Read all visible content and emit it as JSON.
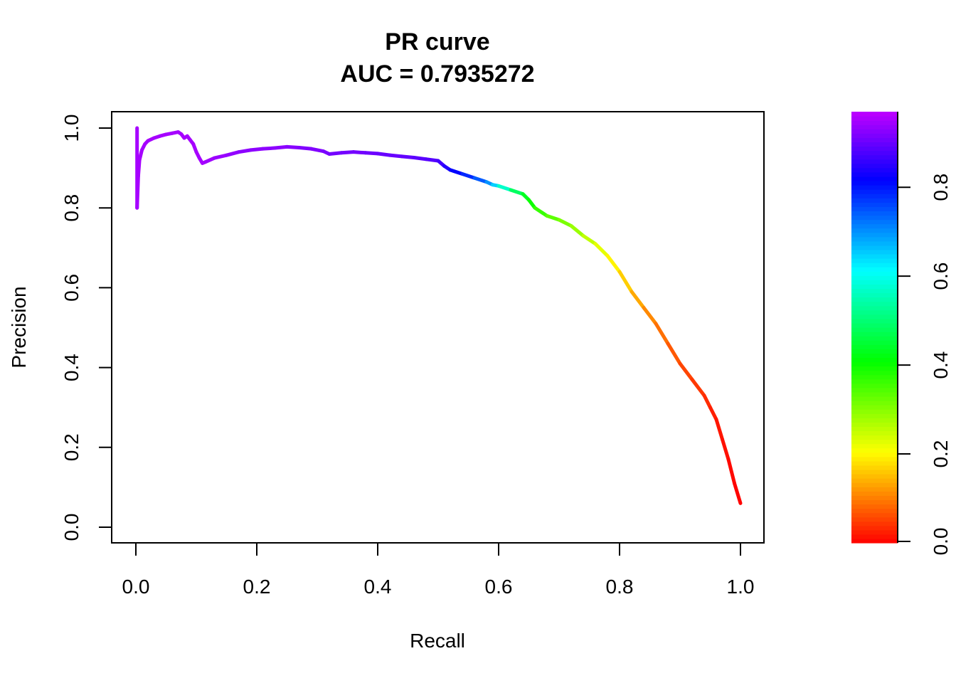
{
  "chart_data": {
    "type": "line",
    "title": "PR curve",
    "subtitle": "AUC = 0.7935272",
    "xlabel": "Recall",
    "ylabel": "Precision",
    "xlim": [
      0.0,
      1.0
    ],
    "ylim": [
      0.0,
      1.0
    ],
    "x_ticks": [
      "0.0",
      "0.2",
      "0.4",
      "0.6",
      "0.8",
      "1.0"
    ],
    "y_ticks": [
      "0.0",
      "0.2",
      "0.4",
      "0.6",
      "0.8",
      "1.0"
    ],
    "grid": false,
    "legend": "none",
    "colorbar": {
      "range": [
        0.0,
        0.97
      ],
      "ticks": [
        "0.0",
        "0.2",
        "0.4",
        "0.6",
        "0.8"
      ],
      "palette": "rainbow",
      "colors": [
        "#ff0000",
        "#ff8000",
        "#ffff00",
        "#80ff00",
        "#00ff00",
        "#00ffff",
        "#0000ff",
        "#8000ff",
        "#cc00ff"
      ]
    },
    "series": [
      {
        "x": [
          0.002,
          0.002,
          0.004,
          0.006,
          0.01,
          0.015,
          0.02,
          0.03,
          0.04,
          0.05,
          0.06,
          0.07,
          0.075,
          0.08,
          0.085,
          0.09,
          0.095,
          0.1,
          0.105,
          0.11,
          0.115,
          0.13,
          0.15,
          0.17,
          0.19,
          0.21,
          0.23,
          0.25,
          0.27,
          0.29,
          0.31,
          0.32,
          0.34,
          0.36,
          0.38,
          0.4,
          0.42,
          0.44,
          0.46,
          0.48,
          0.5,
          0.51,
          0.52,
          0.54,
          0.56,
          0.58,
          0.59,
          0.6,
          0.62,
          0.64,
          0.65,
          0.66,
          0.68,
          0.7,
          0.72,
          0.74,
          0.76,
          0.78,
          0.8,
          0.82,
          0.84,
          0.86,
          0.88,
          0.9,
          0.92,
          0.94,
          0.95,
          0.96,
          0.97,
          0.98,
          0.99,
          1.0
        ],
        "y": [
          1.0,
          0.8,
          0.88,
          0.92,
          0.945,
          0.96,
          0.968,
          0.975,
          0.98,
          0.984,
          0.987,
          0.99,
          0.985,
          0.975,
          0.98,
          0.97,
          0.96,
          0.94,
          0.925,
          0.912,
          0.915,
          0.925,
          0.932,
          0.94,
          0.945,
          0.948,
          0.95,
          0.953,
          0.951,
          0.948,
          0.942,
          0.935,
          0.938,
          0.94,
          0.938,
          0.936,
          0.932,
          0.929,
          0.926,
          0.922,
          0.918,
          0.905,
          0.895,
          0.885,
          0.875,
          0.865,
          0.858,
          0.855,
          0.845,
          0.835,
          0.82,
          0.8,
          0.78,
          0.77,
          0.755,
          0.73,
          0.71,
          0.68,
          0.64,
          0.59,
          0.55,
          0.51,
          0.46,
          0.41,
          0.37,
          0.33,
          0.3,
          0.27,
          0.22,
          0.17,
          0.11,
          0.06
        ],
        "color_value": [
          0.95,
          0.95,
          0.95,
          0.95,
          0.95,
          0.95,
          0.95,
          0.95,
          0.95,
          0.95,
          0.95,
          0.95,
          0.95,
          0.95,
          0.95,
          0.95,
          0.95,
          0.95,
          0.95,
          0.95,
          0.95,
          0.94,
          0.94,
          0.93,
          0.93,
          0.93,
          0.93,
          0.93,
          0.92,
          0.92,
          0.92,
          0.91,
          0.91,
          0.91,
          0.91,
          0.9,
          0.9,
          0.9,
          0.89,
          0.89,
          0.88,
          0.86,
          0.83,
          0.8,
          0.77,
          0.72,
          0.68,
          0.62,
          0.52,
          0.45,
          0.42,
          0.38,
          0.35,
          0.32,
          0.3,
          0.27,
          0.24,
          0.21,
          0.18,
          0.15,
          0.12,
          0.1,
          0.08,
          0.06,
          0.05,
          0.04,
          0.03,
          0.02,
          0.015,
          0.01,
          0.005,
          0.0
        ]
      }
    ]
  }
}
